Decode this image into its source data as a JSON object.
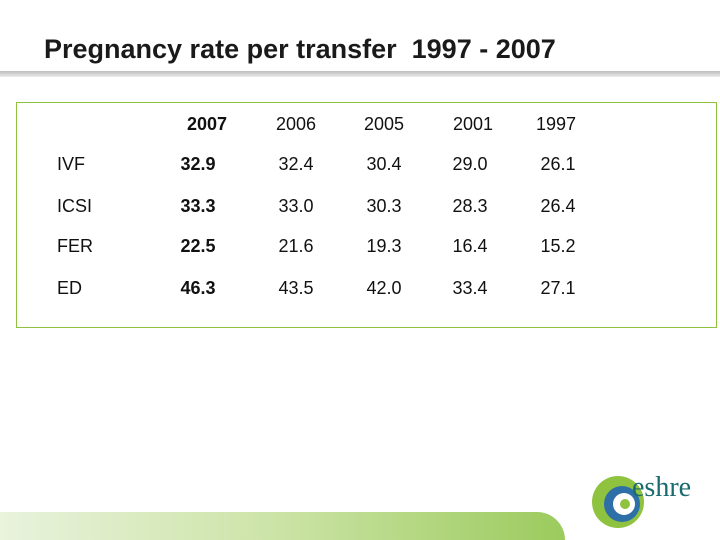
{
  "title": "Pregnancy rate per transfer  1997 - 2007",
  "table": {
    "columns": [
      "2007",
      "2006",
      "2005",
      "2001",
      "1997"
    ],
    "rows": [
      {
        "label": "IVF",
        "values": [
          "32.9",
          "32.4",
          "30.4",
          "29.0",
          "26.1"
        ]
      },
      {
        "label": "ICSI",
        "values": [
          "33.3",
          "33.0",
          "30.3",
          "28.3",
          "26.4"
        ]
      },
      {
        "label": "FER",
        "values": [
          "22.5",
          "21.6",
          "19.3",
          "16.4",
          "15.2"
        ]
      },
      {
        "label": "ED",
        "values": [
          "46.3",
          "43.5",
          "42.0",
          "33.4",
          "27.1"
        ]
      }
    ]
  },
  "logo": {
    "name": "eshre-logo-icon",
    "text": "eshre",
    "colors": {
      "green": "#8fc23f",
      "teal": "#1a6a6e",
      "blue": "#2f6fa8"
    }
  },
  "colors": {
    "border": "#8fc23f",
    "title": "#1a1a1a"
  }
}
